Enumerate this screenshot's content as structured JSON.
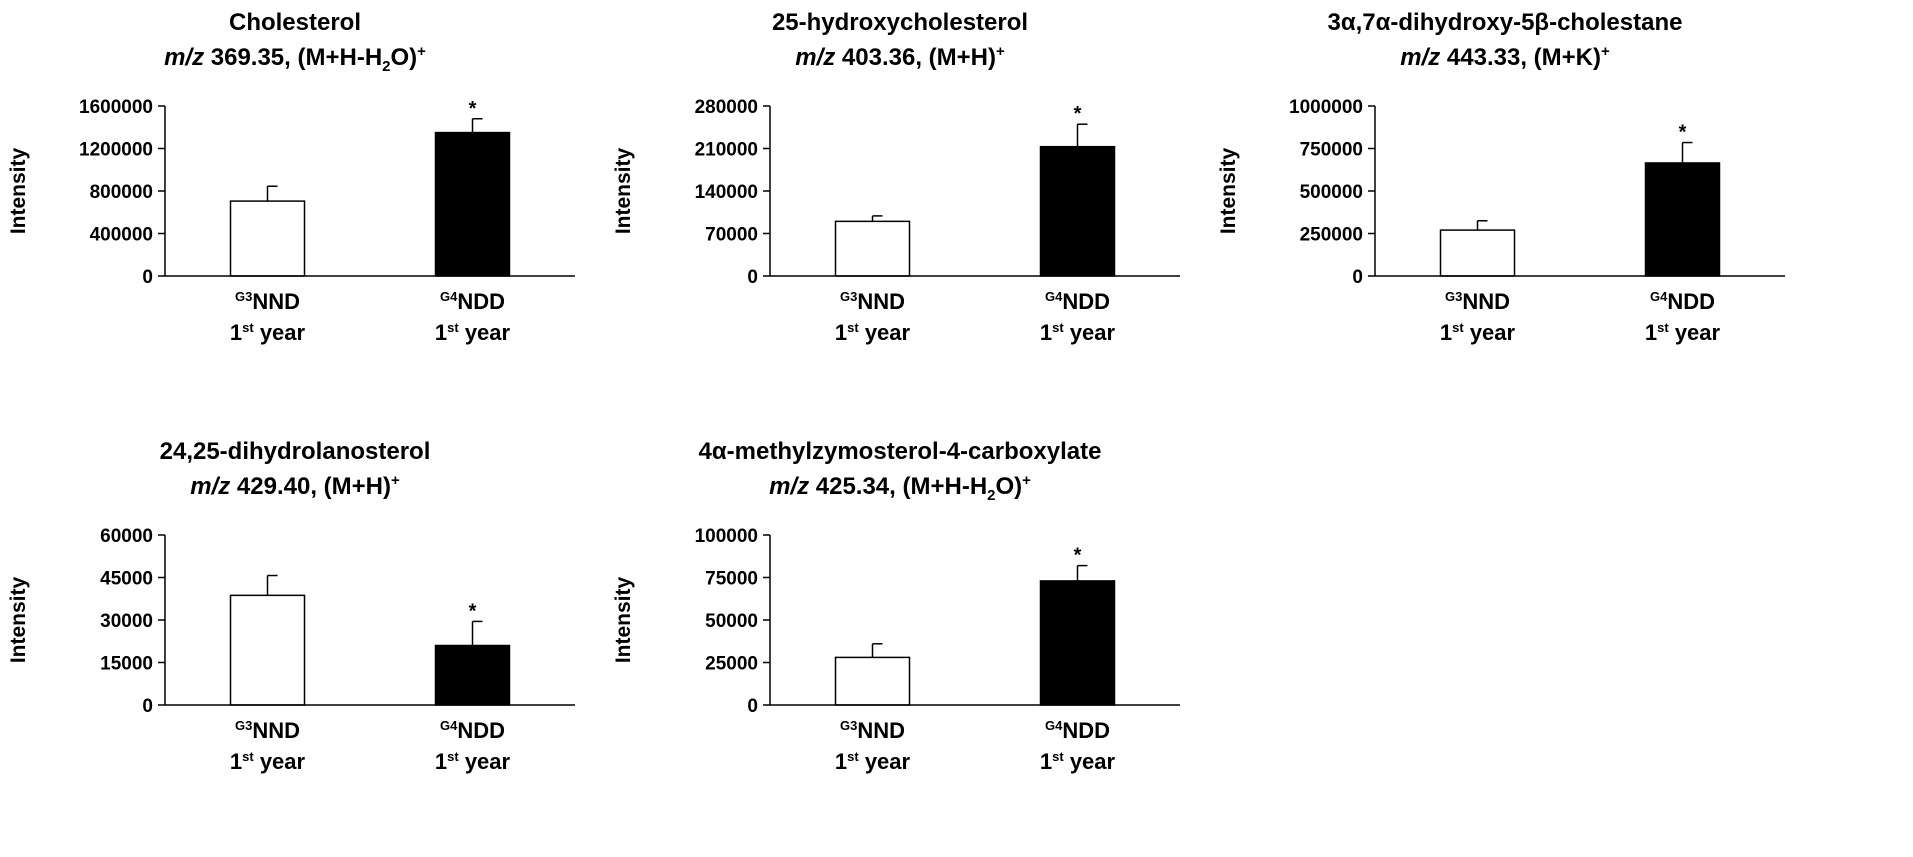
{
  "chart_data": [
    {
      "type": "bar",
      "title": "Cholesterol",
      "subtitle": {
        "mz_label": "m/z",
        "mz": "369.35",
        "adduct_pre": "(M+H-H",
        "adduct_sub": "2",
        "adduct_post": "O)",
        "adduct_sup": "+"
      },
      "ylabel": "Intensity",
      "ylim": [
        0,
        1600000
      ],
      "yticks": [
        "0",
        "400000",
        "800000",
        "1200000",
        "1600000"
      ],
      "ytick_values": [
        0,
        400000,
        800000,
        1200000,
        1600000
      ],
      "categories": [
        {
          "sup": "G3",
          "name": "NND",
          "line2_pre": "1",
          "line2_sup": "st",
          "line2_post": " year"
        },
        {
          "sup": "G4",
          "name": "NDD",
          "line2_pre": "1",
          "line2_sup": "st",
          "line2_post": " year"
        }
      ],
      "values": [
        705000,
        1350000
      ],
      "errors": [
        140000,
        130000
      ],
      "colors": [
        "#ffffff",
        "#000000"
      ],
      "significance": [
        "",
        "*"
      ]
    },
    {
      "type": "bar",
      "title": "25-hydroxycholesterol",
      "subtitle": {
        "mz_label": "m/z",
        "mz": "403.36",
        "adduct_pre": "(M+H)",
        "adduct_sub": "",
        "adduct_post": "",
        "adduct_sup": "+"
      },
      "ylabel": "Intensity",
      "ylim": [
        0,
        280000
      ],
      "yticks": [
        "0",
        "70000",
        "140000",
        "210000",
        "280000"
      ],
      "ytick_values": [
        0,
        70000,
        140000,
        210000,
        280000
      ],
      "categories": [
        {
          "sup": "G3",
          "name": "NND",
          "line2_pre": "1",
          "line2_sup": "st",
          "line2_post": " year"
        },
        {
          "sup": "G4",
          "name": "NDD",
          "line2_pre": "1",
          "line2_sup": "st",
          "line2_post": " year"
        }
      ],
      "values": [
        90000,
        213000
      ],
      "errors": [
        9000,
        37000
      ],
      "colors": [
        "#ffffff",
        "#000000"
      ],
      "significance": [
        "",
        "*"
      ]
    },
    {
      "type": "bar",
      "title": "3α,7α-dihydroxy-5β-cholestane",
      "subtitle": {
        "mz_label": "m/z",
        "mz": "443.33",
        "adduct_pre": "(M+K)",
        "adduct_sub": "",
        "adduct_post": "",
        "adduct_sup": "+"
      },
      "ylabel": "Intensity",
      "ylim": [
        0,
        1000000
      ],
      "yticks": [
        "0",
        "250000",
        "500000",
        "750000",
        "1000000"
      ],
      "ytick_values": [
        0,
        250000,
        500000,
        750000,
        1000000
      ],
      "categories": [
        {
          "sup": "G3",
          "name": "NND",
          "line2_pre": "1",
          "line2_sup": "st",
          "line2_post": " year"
        },
        {
          "sup": "G4",
          "name": "NDD",
          "line2_pre": "1",
          "line2_sup": "st",
          "line2_post": " year"
        }
      ],
      "values": [
        270000,
        665000
      ],
      "errors": [
        55000,
        120000
      ],
      "colors": [
        "#ffffff",
        "#000000"
      ],
      "significance": [
        "",
        "*"
      ]
    },
    {
      "type": "bar",
      "title": "24,25-dihydrolanosterol",
      "subtitle": {
        "mz_label": "m/z",
        "mz": "429.40",
        "adduct_pre": "(M+H)",
        "adduct_sub": "",
        "adduct_post": "",
        "adduct_sup": "+"
      },
      "ylabel": "Intensity",
      "ylim": [
        0,
        60000
      ],
      "yticks": [
        "0",
        "15000",
        "30000",
        "45000",
        "60000"
      ],
      "ytick_values": [
        0,
        15000,
        30000,
        45000,
        60000
      ],
      "categories": [
        {
          "sup": "G3",
          "name": "NND",
          "line2_pre": "1",
          "line2_sup": "st",
          "line2_post": " year"
        },
        {
          "sup": "G4",
          "name": "NDD",
          "line2_pre": "1",
          "line2_sup": "st",
          "line2_post": " year"
        }
      ],
      "values": [
        38700,
        21000
      ],
      "errors": [
        7000,
        8500
      ],
      "colors": [
        "#ffffff",
        "#000000"
      ],
      "significance": [
        "",
        "*"
      ]
    },
    {
      "type": "bar",
      "title": "4α-methylzymosterol-4-carboxylate",
      "subtitle": {
        "mz_label": "m/z",
        "mz": "425.34",
        "adduct_pre": "(M+H-H",
        "adduct_sub": "2",
        "adduct_post": "O)",
        "adduct_sup": "+"
      },
      "ylabel": "Intensity",
      "ylim": [
        0,
        100000
      ],
      "yticks": [
        "0",
        "25000",
        "50000",
        "75000",
        "100000"
      ],
      "ytick_values": [
        0,
        25000,
        50000,
        75000,
        100000
      ],
      "categories": [
        {
          "sup": "G3",
          "name": "NND",
          "line2_pre": "1",
          "line2_sup": "st",
          "line2_post": " year"
        },
        {
          "sup": "G4",
          "name": "NDD",
          "line2_pre": "1",
          "line2_sup": "st",
          "line2_post": " year"
        }
      ],
      "values": [
        28000,
        73000
      ],
      "errors": [
        8000,
        9000
      ],
      "colors": [
        "#ffffff",
        "#000000"
      ],
      "significance": [
        "",
        "*"
      ]
    }
  ]
}
